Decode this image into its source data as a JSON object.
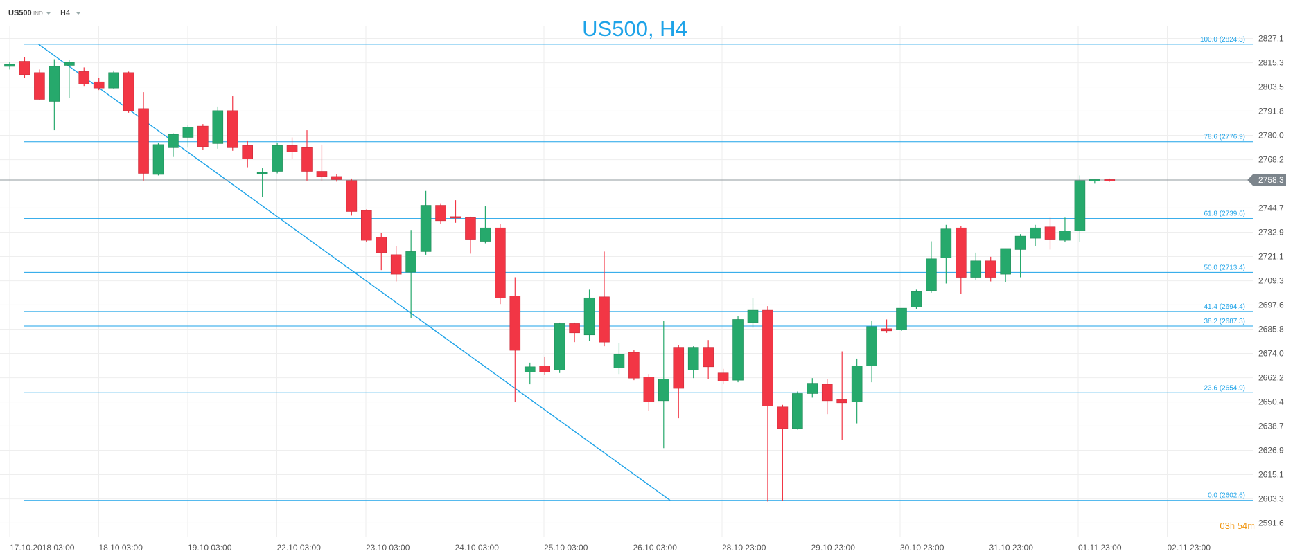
{
  "toolbar": {
    "symbol": "US500",
    "market": "IND",
    "timeframe": "H4"
  },
  "timer": {
    "hours": "03",
    "h_unit": "h",
    "minutes": "54",
    "m_unit": "m"
  },
  "colors": {
    "up": "#26a96c",
    "down": "#f23645",
    "fib": "#1ea3e8",
    "grid": "#eeeeee",
    "axis_text": "#555555",
    "price_tag": "#7c858c"
  },
  "chart_data": {
    "type": "candlestick",
    "title": "US500, H4",
    "ylim": [
      2585.0,
      2833.0
    ],
    "y_ticks": [
      "2827.1",
      "2815.3",
      "2803.5",
      "2791.8",
      "2780.0",
      "2768.2",
      "2744.7",
      "2732.9",
      "2721.1",
      "2709.3",
      "2697.6",
      "2685.8",
      "2674.0",
      "2662.2",
      "2650.4",
      "2638.7",
      "2626.9",
      "2615.1",
      "2603.3",
      "2591.6"
    ],
    "x_ticks": [
      "17.10.2018  03:00",
      "18.10  03:00",
      "19.10  03:00",
      "22.10  03:00",
      "23.10  03:00",
      "24.10  03:00",
      "25.10  03:00",
      "26.10  03:00",
      "28.10  23:00",
      "29.10  23:00",
      "30.10  23:00",
      "31.10  23:00",
      "01.11  23:00",
      "02.11  23:00"
    ],
    "current_price": "2758.3",
    "fib_levels": [
      {
        "label": "100.0 (2824.3)",
        "price": 2824.3
      },
      {
        "label": "78.6 (2776.9)",
        "price": 2776.9
      },
      {
        "label": "61.8 (2739.6)",
        "price": 2739.6
      },
      {
        "label": "50.0 (2713.4)",
        "price": 2713.4
      },
      {
        "label": "41.4 (2694.4)",
        "price": 2694.4
      },
      {
        "label": "38.2 (2687.3)",
        "price": 2687.3
      },
      {
        "label": "23.6 (2654.9)",
        "price": 2654.9
      },
      {
        "label": "0.0 (2602.6)",
        "price": 2602.6
      }
    ],
    "trendline": {
      "from_bar": 1,
      "from_price": 2824.3,
      "to_bar": 43.5,
      "to_price": 2602.6
    },
    "candles": [
      {
        "o": 2813.5,
        "h": 2815.5,
        "l": 2812.0,
        "c": 2814.5
      },
      {
        "o": 2816.0,
        "h": 2818.0,
        "l": 2808.0,
        "c": 2809.5
      },
      {
        "o": 2810.5,
        "h": 2812.0,
        "l": 2797.0,
        "c": 2797.5
      },
      {
        "o": 2796.5,
        "h": 2817.0,
        "l": 2782.5,
        "c": 2813.5
      },
      {
        "o": 2814.0,
        "h": 2816.5,
        "l": 2798.0,
        "c": 2815.5
      },
      {
        "o": 2811.0,
        "h": 2813.0,
        "l": 2804.0,
        "c": 2805.0
      },
      {
        "o": 2806.0,
        "h": 2808.0,
        "l": 2802.0,
        "c": 2803.0
      },
      {
        "o": 2803.0,
        "h": 2811.5,
        "l": 2802.5,
        "c": 2810.5
      },
      {
        "o": 2810.5,
        "h": 2811.0,
        "l": 2791.0,
        "c": 2792.0
      },
      {
        "o": 2793.0,
        "h": 2801.0,
        "l": 2758.0,
        "c": 2761.5
      },
      {
        "o": 2761.0,
        "h": 2776.5,
        "l": 2760.5,
        "c": 2775.5
      },
      {
        "o": 2774.0,
        "h": 2781.0,
        "l": 2769.5,
        "c": 2780.5
      },
      {
        "o": 2779.0,
        "h": 2785.0,
        "l": 2774.0,
        "c": 2784.0
      },
      {
        "o": 2784.5,
        "h": 2785.5,
        "l": 2773.0,
        "c": 2774.5
      },
      {
        "o": 2776.0,
        "h": 2794.0,
        "l": 2773.5,
        "c": 2792.0
      },
      {
        "o": 2792.0,
        "h": 2799.0,
        "l": 2772.5,
        "c": 2774.0
      },
      {
        "o": 2775.0,
        "h": 2777.5,
        "l": 2764.5,
        "c": 2768.5
      },
      {
        "o": 2761.5,
        "h": 2764.0,
        "l": 2750.0,
        "c": 2762.0
      },
      {
        "o": 2762.5,
        "h": 2776.5,
        "l": 2761.5,
        "c": 2775.0
      },
      {
        "o": 2775.0,
        "h": 2779.0,
        "l": 2768.5,
        "c": 2772.0
      },
      {
        "o": 2774.0,
        "h": 2782.5,
        "l": 2758.0,
        "c": 2762.5
      },
      {
        "o": 2762.5,
        "h": 2775.5,
        "l": 2758.0,
        "c": 2760.0
      },
      {
        "o": 2760.0,
        "h": 2761.0,
        "l": 2757.5,
        "c": 2758.5
      },
      {
        "o": 2758.0,
        "h": 2759.0,
        "l": 2741.0,
        "c": 2743.0
      },
      {
        "o": 2743.5,
        "h": 2744.0,
        "l": 2728.0,
        "c": 2729.0
      },
      {
        "o": 2730.5,
        "h": 2732.5,
        "l": 2714.5,
        "c": 2723.0
      },
      {
        "o": 2722.0,
        "h": 2726.0,
        "l": 2709.0,
        "c": 2712.5
      },
      {
        "o": 2713.5,
        "h": 2734.0,
        "l": 2691.0,
        "c": 2723.5
      },
      {
        "o": 2723.5,
        "h": 2753.0,
        "l": 2722.0,
        "c": 2746.0
      },
      {
        "o": 2746.0,
        "h": 2747.0,
        "l": 2737.0,
        "c": 2738.5
      },
      {
        "o": 2740.5,
        "h": 2748.5,
        "l": 2737.5,
        "c": 2740.0
      },
      {
        "o": 2740.0,
        "h": 2740.5,
        "l": 2722.5,
        "c": 2729.5
      },
      {
        "o": 2728.5,
        "h": 2745.5,
        "l": 2727.5,
        "c": 2735.0
      },
      {
        "o": 2735.0,
        "h": 2737.0,
        "l": 2698.0,
        "c": 2701.0
      },
      {
        "o": 2702.0,
        "h": 2711.0,
        "l": 2650.5,
        "c": 2675.5
      },
      {
        "o": 2665.0,
        "h": 2669.5,
        "l": 2659.0,
        "c": 2667.5
      },
      {
        "o": 2668.0,
        "h": 2672.5,
        "l": 2663.5,
        "c": 2665.0
      },
      {
        "o": 2666.0,
        "h": 2689.0,
        "l": 2664.5,
        "c": 2688.5
      },
      {
        "o": 2688.5,
        "h": 2689.0,
        "l": 2679.5,
        "c": 2684.0
      },
      {
        "o": 2683.0,
        "h": 2705.0,
        "l": 2680.0,
        "c": 2701.0
      },
      {
        "o": 2701.5,
        "h": 2723.5,
        "l": 2677.5,
        "c": 2679.5
      },
      {
        "o": 2667.0,
        "h": 2679.0,
        "l": 2664.0,
        "c": 2673.5
      },
      {
        "o": 2674.5,
        "h": 2675.5,
        "l": 2661.0,
        "c": 2662.0
      },
      {
        "o": 2662.5,
        "h": 2664.0,
        "l": 2646.0,
        "c": 2650.5
      },
      {
        "o": 2651.0,
        "h": 2690.0,
        "l": 2628.0,
        "c": 2661.5
      },
      {
        "o": 2677.0,
        "h": 2678.0,
        "l": 2642.5,
        "c": 2657.0
      },
      {
        "o": 2666.0,
        "h": 2677.5,
        "l": 2662.0,
        "c": 2677.0
      },
      {
        "o": 2677.0,
        "h": 2680.5,
        "l": 2661.5,
        "c": 2667.5
      },
      {
        "o": 2664.5,
        "h": 2666.5,
        "l": 2659.0,
        "c": 2660.5
      },
      {
        "o": 2661.0,
        "h": 2692.0,
        "l": 2660.0,
        "c": 2690.5
      },
      {
        "o": 2689.0,
        "h": 2701.0,
        "l": 2686.5,
        "c": 2695.0
      },
      {
        "o": 2695.0,
        "h": 2697.0,
        "l": 2602.0,
        "c": 2648.5
      },
      {
        "o": 2648.0,
        "h": 2649.0,
        "l": 2602.5,
        "c": 2637.5
      },
      {
        "o": 2637.5,
        "h": 2655.5,
        "l": 2637.0,
        "c": 2654.5
      },
      {
        "o": 2654.5,
        "h": 2662.0,
        "l": 2652.5,
        "c": 2659.5
      },
      {
        "o": 2659.0,
        "h": 2661.5,
        "l": 2644.5,
        "c": 2651.0
      },
      {
        "o": 2651.5,
        "h": 2675.0,
        "l": 2632.0,
        "c": 2650.0
      },
      {
        "o": 2650.5,
        "h": 2671.5,
        "l": 2640.0,
        "c": 2668.0
      },
      {
        "o": 2668.0,
        "h": 2690.0,
        "l": 2660.0,
        "c": 2687.0
      },
      {
        "o": 2686.0,
        "h": 2690.5,
        "l": 2684.0,
        "c": 2685.0
      },
      {
        "o": 2685.5,
        "h": 2696.0,
        "l": 2685.0,
        "c": 2696.0
      },
      {
        "o": 2696.5,
        "h": 2705.0,
        "l": 2695.5,
        "c": 2704.0
      },
      {
        "o": 2704.5,
        "h": 2728.5,
        "l": 2703.5,
        "c": 2720.0
      },
      {
        "o": 2720.5,
        "h": 2736.5,
        "l": 2708.0,
        "c": 2734.5
      },
      {
        "o": 2735.0,
        "h": 2736.0,
        "l": 2703.0,
        "c": 2711.0
      },
      {
        "o": 2711.0,
        "h": 2723.0,
        "l": 2709.5,
        "c": 2719.0
      },
      {
        "o": 2719.0,
        "h": 2721.0,
        "l": 2709.0,
        "c": 2711.0
      },
      {
        "o": 2712.5,
        "h": 2725.0,
        "l": 2708.5,
        "c": 2725.0
      },
      {
        "o": 2724.5,
        "h": 2732.0,
        "l": 2711.0,
        "c": 2731.0
      },
      {
        "o": 2730.0,
        "h": 2736.5,
        "l": 2726.0,
        "c": 2735.0
      },
      {
        "o": 2735.5,
        "h": 2740.0,
        "l": 2724.5,
        "c": 2729.5
      },
      {
        "o": 2729.0,
        "h": 2740.0,
        "l": 2728.0,
        "c": 2733.5
      },
      {
        "o": 2733.5,
        "h": 2760.5,
        "l": 2728.0,
        "c": 2758.0
      },
      {
        "o": 2758.0,
        "h": 2758.5,
        "l": 2756.5,
        "c": 2758.5
      },
      {
        "o": 2758.5,
        "h": 2759.0,
        "l": 2757.5,
        "c": 2758.0
      }
    ]
  }
}
